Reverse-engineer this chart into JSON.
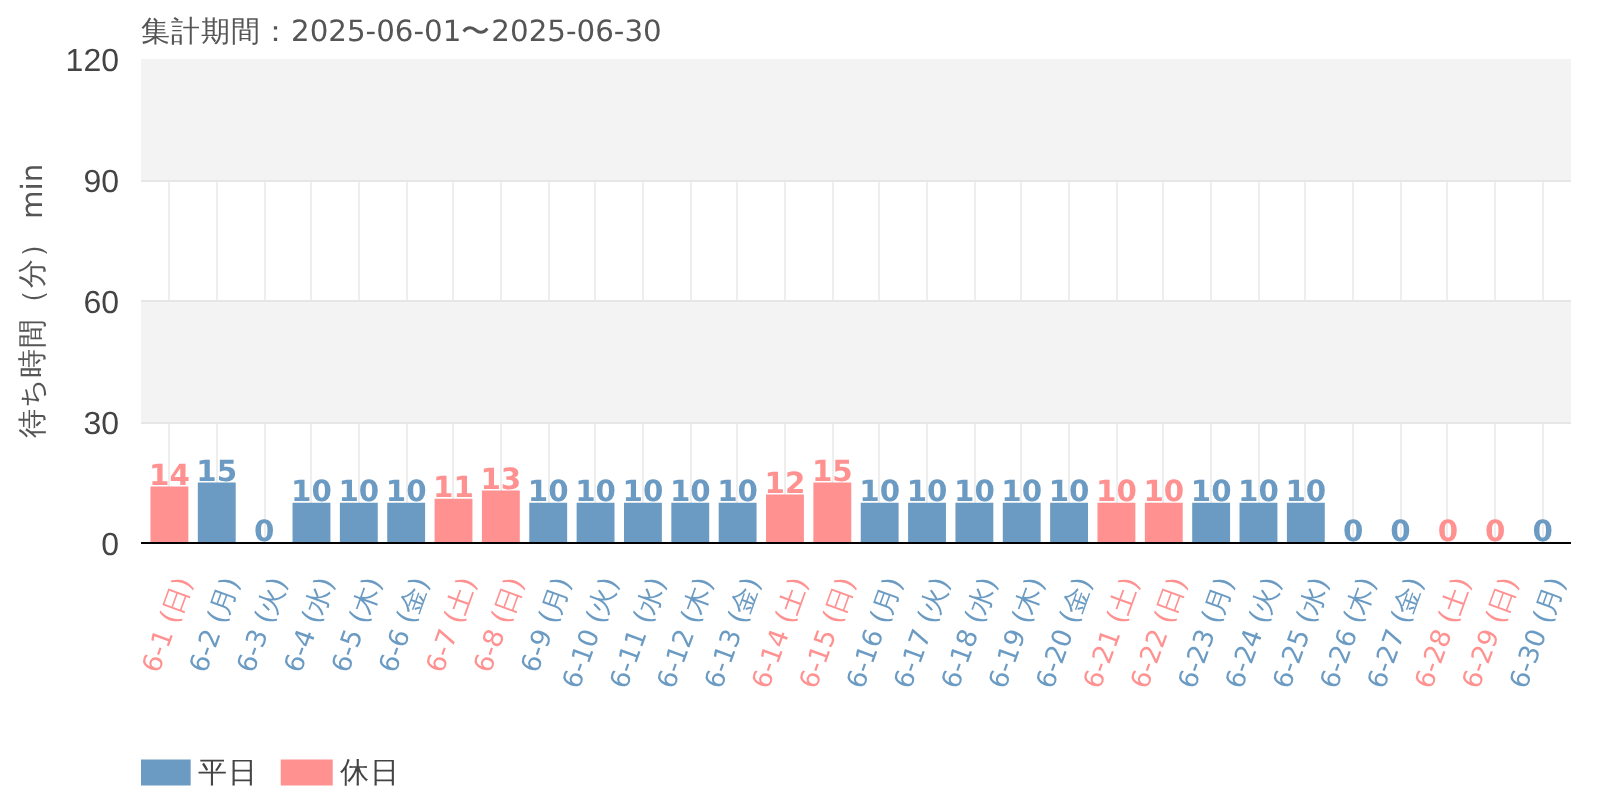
{
  "chart_data": {
    "type": "bar",
    "title": "集計期間：2025-06-01〜2025-06-30",
    "ylabel": "待ち時間（分） min",
    "categories": [
      "6-1 (日)",
      "6-2 (月)",
      "6-3 (火)",
      "6-4 (水)",
      "6-5 (木)",
      "6-6 (金)",
      "6-7 (土)",
      "6-8 (日)",
      "6-9 (月)",
      "6-10 (火)",
      "6-11 (水)",
      "6-12 (木)",
      "6-13 (金)",
      "6-14 (土)",
      "6-15 (日)",
      "6-16 (月)",
      "6-17 (火)",
      "6-18 (水)",
      "6-19 (木)",
      "6-20 (金)",
      "6-21 (土)",
      "6-22 (日)",
      "6-23 (月)",
      "6-24 (火)",
      "6-25 (水)",
      "6-26 (木)",
      "6-27 (金)",
      "6-28 (土)",
      "6-29 (日)",
      "6-30 (月)"
    ],
    "series": [
      {
        "name": "平日",
        "color": "#6b9bc3",
        "values": [
          null,
          15,
          0,
          10,
          10,
          10,
          null,
          null,
          10,
          10,
          10,
          10,
          10,
          null,
          null,
          10,
          10,
          10,
          10,
          10,
          null,
          null,
          10,
          10,
          10,
          0,
          0,
          null,
          null,
          0
        ]
      },
      {
        "name": "休日",
        "color": "#ff9191",
        "values": [
          14,
          null,
          null,
          null,
          null,
          null,
          11,
          13,
          null,
          null,
          null,
          null,
          null,
          12,
          15,
          null,
          null,
          null,
          null,
          null,
          10,
          10,
          null,
          null,
          null,
          null,
          null,
          0,
          0,
          null
        ]
      }
    ],
    "ylim": [
      0,
      120
    ],
    "yticks": [
      0,
      30,
      60,
      90,
      120
    ],
    "grid": true,
    "legend": "bottom left",
    "data_labels": true
  }
}
